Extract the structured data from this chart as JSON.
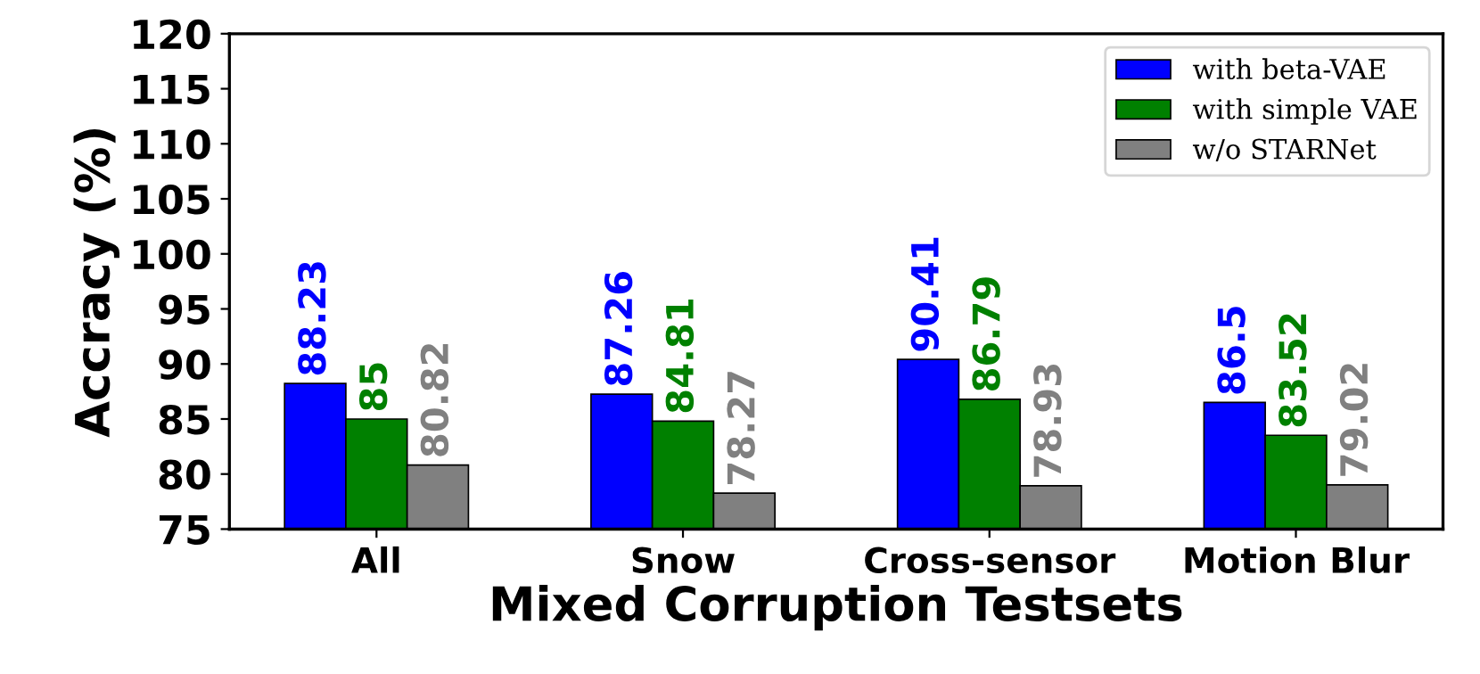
{
  "chart_data": {
    "type": "bar",
    "xlabel": "Mixed Corruption Testsets",
    "ylabel": "Accracy (%)",
    "categories": [
      "All",
      "Snow",
      "Cross-sensor",
      "Motion Blur"
    ],
    "series": [
      {
        "name": "with beta-VAE",
        "color": "#0000ff",
        "values": [
          88.23,
          87.26,
          90.41,
          86.5
        ]
      },
      {
        "name": "with simple VAE",
        "color": "#008000",
        "values": [
          85,
          84.81,
          86.79,
          83.52
        ]
      },
      {
        "name": "w/o STARNet",
        "color": "#808080",
        "values": [
          80.82,
          78.27,
          78.93,
          79.02
        ]
      }
    ],
    "ylim": [
      75,
      120
    ],
    "yticks": [
      75,
      80,
      85,
      90,
      95,
      100,
      105,
      110,
      115,
      120
    ],
    "data_labels": true,
    "legend": "top right",
    "grid": false
  }
}
